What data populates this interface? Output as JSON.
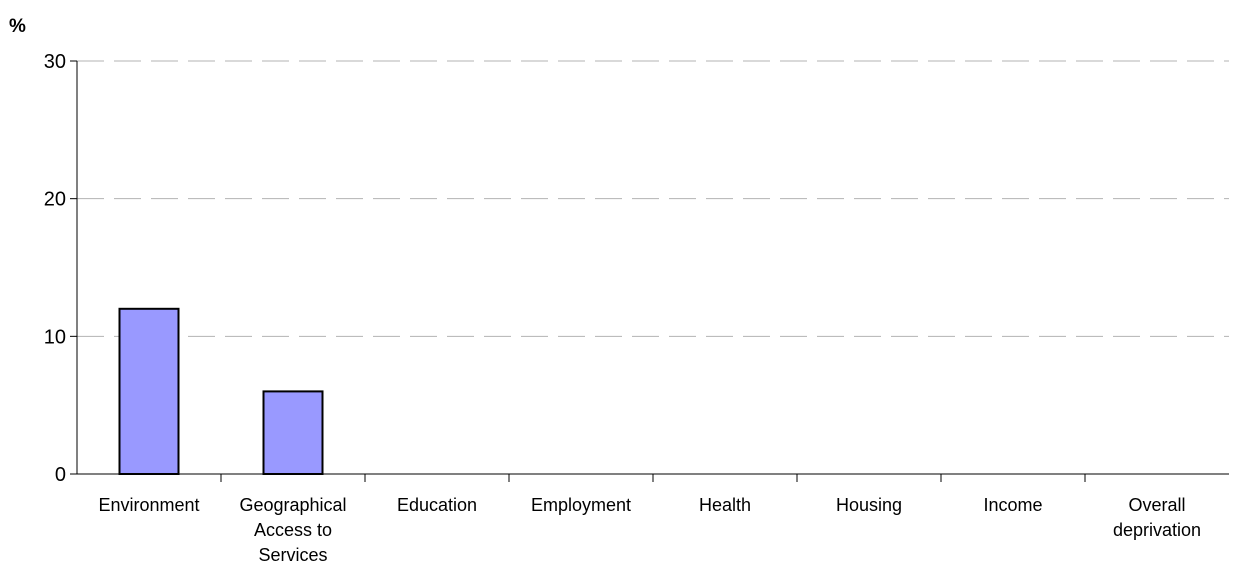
{
  "chart_data": {
    "type": "bar",
    "title": "",
    "xlabel": "",
    "ylabel": "%",
    "ylim": [
      0,
      30
    ],
    "yticks": [
      "0",
      "10",
      "20",
      "30"
    ],
    "grid": true,
    "categories": [
      "Environment",
      "Geographical Access to Services",
      "Education",
      "Employment",
      "Health",
      "Housing",
      "Income",
      "Overall deprivation"
    ],
    "category_lines": [
      [
        "Environment"
      ],
      [
        "Geographical",
        "Access to",
        "Services"
      ],
      [
        "Education"
      ],
      [
        "Employment"
      ],
      [
        "Health"
      ],
      [
        "Housing"
      ],
      [
        "Income"
      ],
      [
        "Overall",
        "deprivation"
      ]
    ],
    "series": [
      {
        "values": [
          12,
          6,
          0,
          0,
          0,
          0,
          0,
          0
        ],
        "color": "#9999ff"
      }
    ]
  }
}
